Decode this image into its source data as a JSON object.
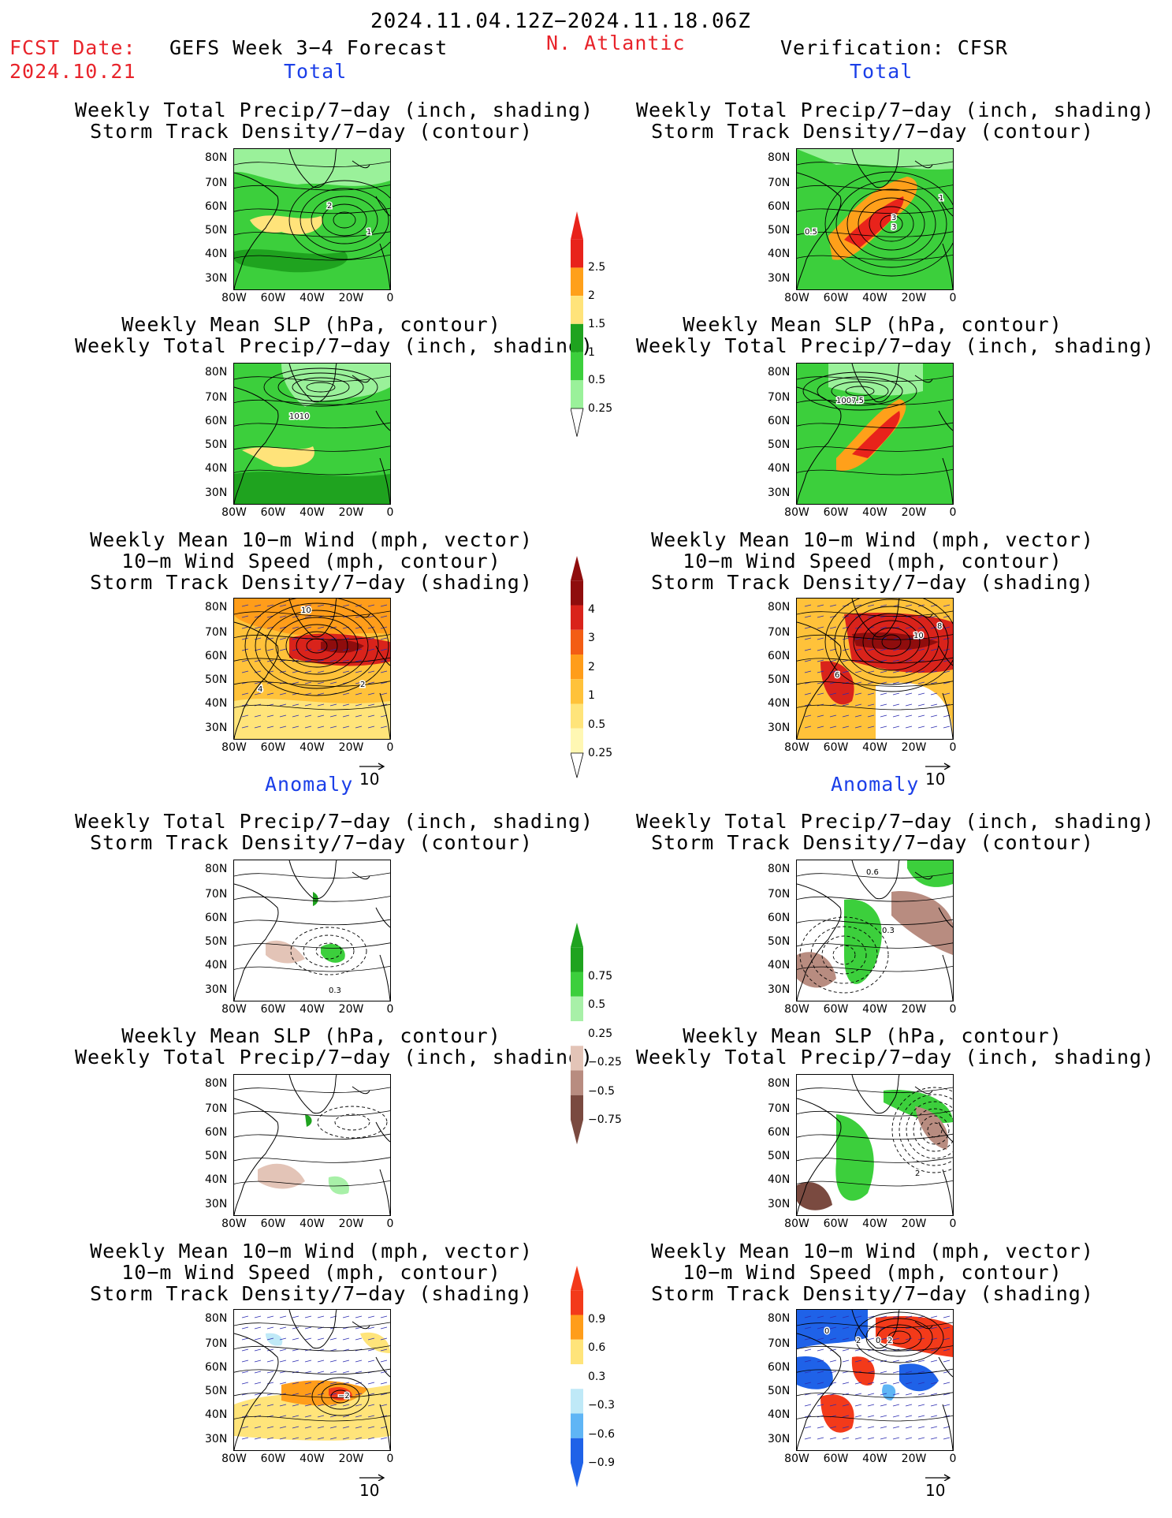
{
  "header": {
    "period": "2024.11.04.12Z−2024.11.18.06Z",
    "fcst_date_label": "FCST Date:",
    "fcst_date": "2024.10.21",
    "model": "GEFS Week 3−4 Forecast",
    "region": "N. Atlantic",
    "verification": "Verification: CFSR"
  },
  "sections": {
    "total": "Total",
    "anomaly": "Anomaly"
  },
  "titles": {
    "precip_std": [
      "Weekly Total Precip/7−day (inch, shading)",
      "Storm Track Density/7−day (contour)"
    ],
    "slp_precip": [
      "Weekly Mean SLP (hPa, contour)",
      "Weekly Total Precip/7−day (inch, shading)"
    ],
    "wind_std": [
      "Weekly Mean 10−m Wind (mph, vector)",
      "10−m Wind Speed (mph, contour)",
      "Storm Track Density/7−day (shading)"
    ]
  },
  "axes": {
    "lat": [
      "80N",
      "70N",
      "60N",
      "50N",
      "40N",
      "30N"
    ],
    "lon": [
      "80W",
      "60W",
      "40W",
      "20W",
      "0"
    ]
  },
  "vector_ref": "10",
  "colorbars": {
    "precip_total": {
      "labels": [
        "2.5",
        "2",
        "1.5",
        "1",
        "0.5",
        "0.25"
      ],
      "colors": [
        "#e8231b",
        "#ffa01a",
        "#ffe37a",
        "#1fa31f",
        "#3ccf3c",
        "#9af19a"
      ]
    },
    "std_total": {
      "labels": [
        "4",
        "3",
        "2",
        "1",
        "0.5",
        "0.25"
      ],
      "colors": [
        "#8f0d0d",
        "#d9231b",
        "#f35d14",
        "#ff9d1a",
        "#ffc23a",
        "#ffe47a",
        "#fff7b3"
      ]
    },
    "precip_anom": {
      "labels": [
        "0.75",
        "0.5",
        "0.25",
        "−0.25",
        "−0.5",
        "−0.75"
      ],
      "colors": [
        "#1fa31f",
        "#3ccf3c",
        "#a8f0a8",
        "#ffffff",
        "#e3c4b7",
        "#b88c80",
        "#7a4a40"
      ]
    },
    "std_anom": {
      "labels": [
        "0.9",
        "0.6",
        "0.3",
        "−0.3",
        "−0.6",
        "−0.9"
      ],
      "colors": [
        "#f33a1a",
        "#ff9d1a",
        "#ffe47a",
        "#ffffff",
        "#bfe9f7",
        "#5fb5f5",
        "#1f62e8"
      ]
    }
  },
  "panels": {
    "l1": {
      "labels": [
        "2",
        "1"
      ]
    },
    "r1": {
      "labels": [
        "1",
        "0.5",
        "3",
        "3"
      ]
    },
    "l2": {
      "labels": [
        "1010"
      ]
    },
    "r2": {
      "labels": [
        "1007.5"
      ]
    },
    "l3": {
      "labels": [
        "10",
        "4",
        "2"
      ]
    },
    "r3": {
      "labels": [
        "10",
        "8",
        "6"
      ]
    },
    "l4": {
      "labels": [
        "0.3"
      ]
    },
    "r4": {
      "labels": [
        "0.6",
        "0.3"
      ]
    },
    "l5": {
      "labels": []
    },
    "r5": {
      "labels": [
        "2"
      ]
    },
    "l6": {
      "labels": [
        "−2"
      ]
    },
    "r6": {
      "labels": [
        "0",
        "2",
        "0",
        "2"
      ]
    }
  }
}
